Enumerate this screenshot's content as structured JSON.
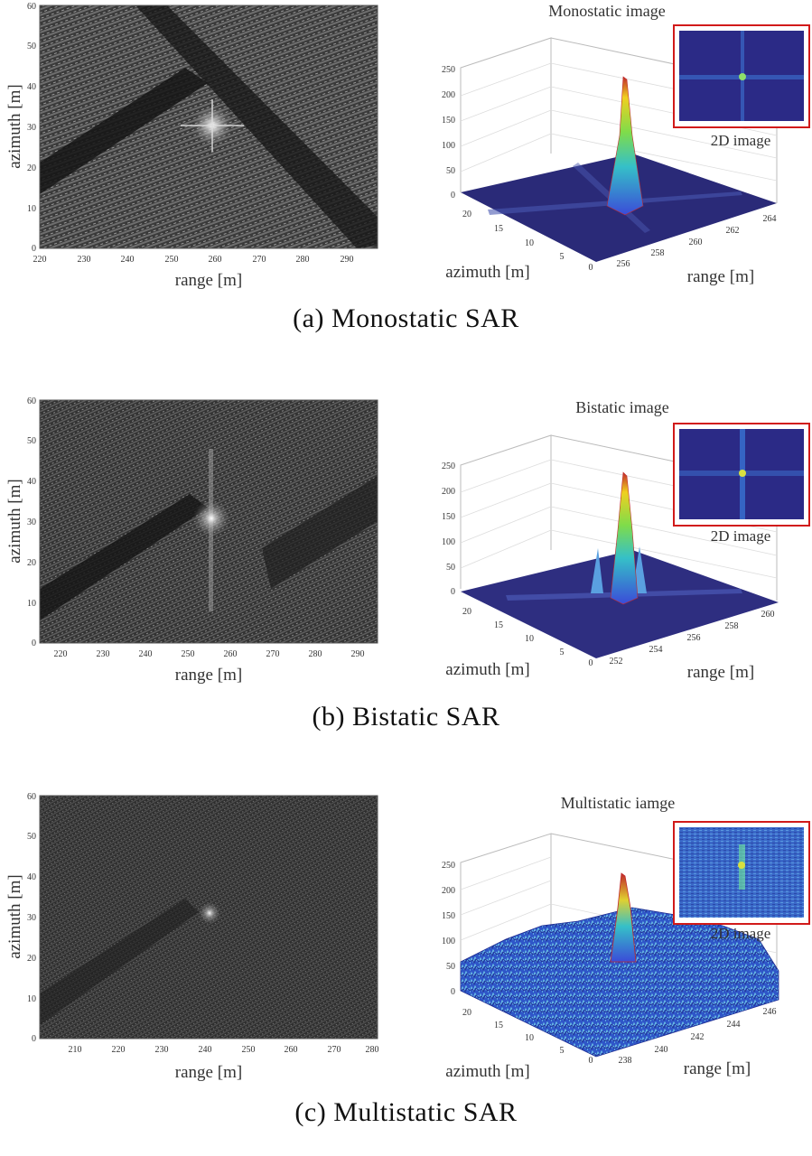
{
  "figure": {
    "panels": [
      {
        "id": "a",
        "caption": "(a)  Monostatic  SAR",
        "sar2d": {
          "xlabel": "range [m]",
          "ylabel": "azimuth [m]",
          "xticks": [
            "220",
            "230",
            "240",
            "250",
            "260",
            "270",
            "280",
            "290"
          ],
          "yticks": [
            "0",
            "10",
            "20",
            "30",
            "40",
            "50",
            "60"
          ]
        },
        "surf3d": {
          "title": "Monostatic image",
          "zticks": [
            "0",
            "50",
            "100",
            "150",
            "200",
            "250"
          ],
          "azimuth_ticks": [
            "20",
            "15",
            "10",
            "5",
            "0"
          ],
          "range_ticks": [
            "256",
            "258",
            "260",
            "262",
            "264"
          ],
          "xlabel": "range [m]",
          "ylabel": "azimuth [m]",
          "inset_label": "2D image"
        }
      },
      {
        "id": "b",
        "caption": "(b)  Bistatic  SAR",
        "sar2d": {
          "xlabel": "range [m]",
          "ylabel": "azimuth [m]",
          "xticks": [
            "220",
            "230",
            "240",
            "250",
            "260",
            "270",
            "280",
            "290"
          ],
          "yticks": [
            "0",
            "10",
            "20",
            "30",
            "40",
            "50",
            "60"
          ]
        },
        "surf3d": {
          "title": "Bistatic image",
          "zticks": [
            "0",
            "50",
            "100",
            "150",
            "200",
            "250"
          ],
          "azimuth_ticks": [
            "20",
            "15",
            "10",
            "5",
            "0"
          ],
          "range_ticks": [
            "252",
            "254",
            "256",
            "258",
            "260"
          ],
          "xlabel": "range [m]",
          "ylabel": "azimuth [m]",
          "inset_label": "2D image"
        }
      },
      {
        "id": "c",
        "caption": "(c)  Multistatic  SAR",
        "sar2d": {
          "xlabel": "range [m]",
          "ylabel": "azimuth [m]",
          "xticks": [
            "210",
            "220",
            "230",
            "240",
            "250",
            "260",
            "270",
            "280"
          ],
          "yticks": [
            "0",
            "10",
            "20",
            "30",
            "40",
            "50",
            "60"
          ]
        },
        "surf3d": {
          "title": "Multistatic iamge",
          "zticks": [
            "0",
            "50",
            "100",
            "150",
            "200",
            "250"
          ],
          "azimuth_ticks": [
            "20",
            "15",
            "10",
            "5",
            "0"
          ],
          "range_ticks": [
            "238",
            "240",
            "242",
            "244",
            "246"
          ],
          "xlabel": "range [m]",
          "ylabel": "azimuth [m]",
          "inset_label": "2D image"
        }
      }
    ]
  },
  "colors": {
    "inset_border": "#d11a1a",
    "surface_floor": "#2a2a78",
    "inset_fill": "#2b2a86"
  }
}
